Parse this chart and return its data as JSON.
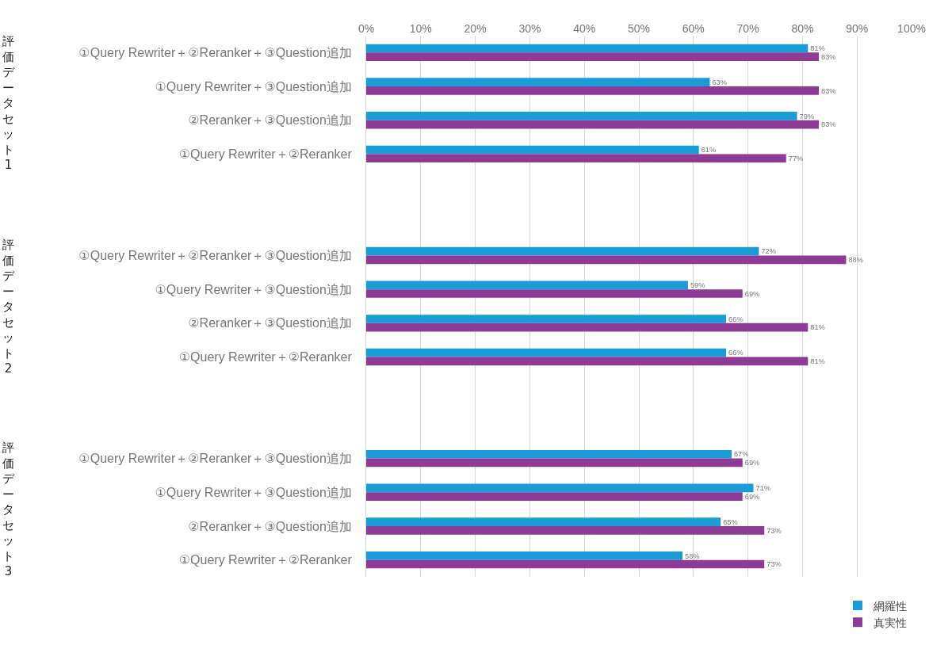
{
  "chart_data": {
    "type": "bar",
    "orientation": "horizontal",
    "categories": [
      "①Query Rewriter＋②Reranker＋③Question追加",
      "①Query Rewriter＋③Question追加",
      "②Reranker＋③Question追加",
      "①Query Rewriter＋②Reranker",
      null,
      null,
      "①Query Rewriter＋②Reranker＋③Question追加",
      "①Query Rewriter＋③Question追加",
      "②Reranker＋③Question追加",
      "①Query Rewriter＋②Reranker",
      null,
      null,
      "①Query Rewriter＋②Reranker＋③Question追加",
      "①Query Rewriter＋③Question追加",
      "②Reranker＋③Question追加",
      "①Query Rewriter＋②Reranker"
    ],
    "series": [
      {
        "name": "網羅性",
        "color": "#1a9cd8",
        "values": [
          81,
          63,
          79,
          61,
          null,
          null,
          72,
          59,
          66,
          66,
          null,
          null,
          67,
          71,
          65,
          58
        ],
        "value_labels": [
          "81%",
          "63%",
          "79%",
          "61%",
          null,
          null,
          "72%",
          "59%",
          "66%",
          "66%",
          null,
          null,
          "67%",
          "71%",
          "65%",
          "58%"
        ]
      },
      {
        "name": "真実性",
        "color": "#8e3a96",
        "values": [
          83,
          83,
          83,
          77,
          null,
          null,
          88,
          69,
          81,
          81,
          null,
          null,
          69,
          69,
          73,
          73
        ],
        "value_labels": [
          "83%",
          "83%",
          "83%",
          "77%",
          null,
          null,
          "88%",
          "69%",
          "81%",
          "81%",
          null,
          null,
          "69%",
          "69%",
          "73%",
          "73%"
        ]
      }
    ],
    "xlim": [
      0,
      100
    ],
    "xticks": [
      {
        "value": 0,
        "label": "0%"
      },
      {
        "value": 10,
        "label": "10%"
      },
      {
        "value": 20,
        "label": "20%"
      },
      {
        "value": 30,
        "label": "30%"
      },
      {
        "value": 40,
        "label": "40%"
      },
      {
        "value": 50,
        "label": "50%"
      },
      {
        "value": 60,
        "label": "60%"
      },
      {
        "value": 70,
        "label": "70%"
      },
      {
        "value": 80,
        "label": "80%"
      },
      {
        "value": 90,
        "label": "90%"
      },
      {
        "value": 100,
        "label": "100%"
      }
    ],
    "grid": "x",
    "legend": "bottom right",
    "annotations": [
      "評価データセット1",
      "評価データセット2",
      "評価データセット3"
    ]
  }
}
